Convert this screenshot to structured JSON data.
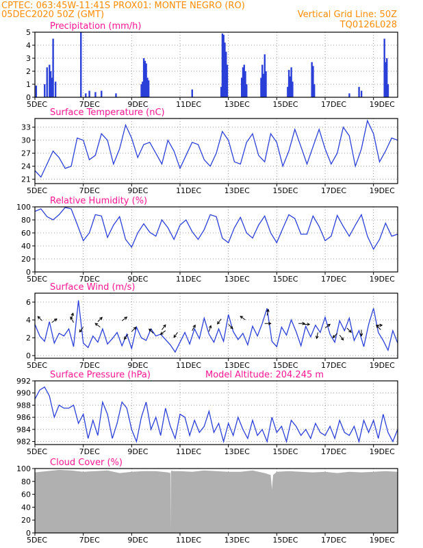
{
  "header": {
    "left_line1": "CPTEC:    063:45W-11:41S   PROX01: MONTE NEGRO (RO)",
    "left_line2": "05DEC2020 50Z (GMT)",
    "right_line1": "Vertical Grid Line: 50Z",
    "right_line2": "TQ0126L028"
  },
  "colors": {
    "header": "#ff8c00",
    "panel_title": "#ff1493",
    "line": "#2a3fd8",
    "cloud": "#b0b0b0",
    "grid": "#9a9a9a"
  },
  "model_altitude": "Model Altitude: 204.245 m",
  "x_tick_labels": [
    "5DEC",
    "7DEC",
    "9DEC",
    "11DEC",
    "13DEC",
    "15DEC",
    "17DEC",
    "19DEC"
  ],
  "x_tick_days": [
    5,
    7,
    9,
    11,
    13,
    15,
    17,
    19
  ],
  "x_range_days": [
    5,
    20
  ],
  "chart_data": [
    {
      "type": "bar",
      "title": "Precipitation (mm/h)",
      "ylim": [
        0,
        5
      ],
      "yticks": [
        0,
        1,
        2,
        3,
        4,
        5
      ],
      "xlim_days": [
        5,
        20
      ],
      "x_days": [
        5.05,
        5.4,
        5.5,
        5.6,
        5.65,
        5.7,
        5.75,
        5.85,
        6.9,
        7.1,
        7.25,
        7.5,
        7.75,
        8.35,
        9.4,
        9.45,
        9.5,
        9.55,
        9.6,
        9.65,
        9.7,
        11.5,
        12.7,
        12.75,
        12.8,
        12.85,
        12.9,
        12.95,
        13.55,
        13.6,
        13.65,
        13.7,
        13.75,
        14.35,
        14.4,
        14.45,
        14.5,
        14.55,
        15.45,
        15.5,
        15.55,
        15.6,
        15.65,
        16.45,
        16.5,
        16.55,
        18.0,
        18.4,
        18.5,
        19.45,
        19.5,
        19.55,
        19.6
      ],
      "values": [
        0.9,
        1.0,
        2.3,
        2.5,
        2.0,
        1.5,
        4.5,
        1.2,
        5.0,
        0.3,
        0.5,
        0.4,
        0.5,
        0.3,
        1.0,
        1.2,
        3.0,
        2.8,
        2.6,
        1.5,
        1.3,
        0.6,
        0.8,
        4.9,
        4.8,
        4.2,
        3.5,
        2.5,
        1.5,
        2.3,
        2.5,
        2.0,
        1.0,
        1.5,
        2.5,
        1.8,
        3.3,
        2.0,
        0.8,
        2.1,
        1.6,
        2.3,
        1.2,
        2.7,
        2.4,
        1.0,
        0.3,
        0.8,
        0.5,
        4.5,
        2.7,
        3.0,
        1.0
      ]
    },
    {
      "type": "line",
      "title": "Surface Temperature (nC)",
      "ylim": [
        20,
        35
      ],
      "yticks": [
        21,
        24,
        27,
        30,
        33
      ],
      "xlim_days": [
        5,
        20
      ],
      "x_days": [
        5.0,
        5.25,
        5.5,
        5.75,
        6.0,
        6.25,
        6.5,
        6.75,
        7.0,
        7.25,
        7.5,
        7.75,
        8.0,
        8.25,
        8.5,
        8.75,
        9.0,
        9.25,
        9.5,
        9.75,
        10.0,
        10.25,
        10.5,
        10.75,
        11.0,
        11.25,
        11.5,
        11.75,
        12.0,
        12.25,
        12.5,
        12.75,
        13.0,
        13.25,
        13.5,
        13.75,
        14.0,
        14.25,
        14.5,
        14.75,
        15.0,
        15.25,
        15.5,
        15.75,
        16.0,
        16.25,
        16.5,
        16.75,
        17.0,
        17.25,
        17.5,
        17.75,
        18.0,
        18.25,
        18.5,
        18.75,
        19.0,
        19.25,
        19.5,
        19.75,
        20.0
      ],
      "values": [
        23.0,
        21.5,
        24.5,
        27.5,
        26.0,
        23.5,
        24.0,
        30.5,
        30.0,
        25.5,
        26.5,
        31.5,
        30.0,
        24.5,
        28.0,
        33.5,
        30.5,
        26.0,
        29.0,
        29.5,
        27.0,
        24.5,
        30.0,
        27.5,
        23.5,
        26.5,
        29.5,
        29.0,
        25.5,
        24.0,
        27.0,
        32.0,
        30.0,
        25.0,
        24.5,
        29.5,
        31.5,
        26.5,
        25.0,
        31.5,
        29.5,
        24.0,
        27.5,
        32.5,
        28.5,
        24.5,
        28.5,
        32.5,
        28.0,
        24.5,
        27.0,
        33.0,
        31.0,
        24.0,
        28.0,
        34.5,
        31.5,
        25.0,
        27.5,
        30.5,
        30.0
      ]
    },
    {
      "type": "line",
      "title": "Relative Humidity (%)",
      "ylim": [
        0,
        100
      ],
      "yticks": [
        0,
        20,
        40,
        60,
        80,
        100
      ],
      "xlim_days": [
        5,
        20
      ],
      "x_days": [
        5.0,
        5.25,
        5.5,
        5.75,
        6.0,
        6.25,
        6.5,
        6.75,
        7.0,
        7.25,
        7.5,
        7.75,
        8.0,
        8.25,
        8.5,
        8.75,
        9.0,
        9.25,
        9.5,
        9.75,
        10.0,
        10.25,
        10.5,
        10.75,
        11.0,
        11.25,
        11.5,
        11.75,
        12.0,
        12.25,
        12.5,
        12.75,
        13.0,
        13.25,
        13.5,
        13.75,
        14.0,
        14.25,
        14.5,
        14.75,
        15.0,
        15.25,
        15.5,
        15.75,
        16.0,
        16.25,
        16.5,
        16.75,
        17.0,
        17.25,
        17.5,
        17.75,
        18.0,
        18.25,
        18.5,
        18.75,
        19.0,
        19.25,
        19.5,
        19.75,
        20.0
      ],
      "values": [
        93,
        97,
        85,
        80,
        88,
        99,
        97,
        73,
        48,
        60,
        88,
        86,
        53,
        72,
        85,
        50,
        38,
        60,
        74,
        61,
        55,
        80,
        68,
        50,
        72,
        80,
        62,
        50,
        65,
        88,
        85,
        52,
        45,
        68,
        84,
        60,
        52,
        72,
        86,
        60,
        45,
        67,
        88,
        82,
        58,
        58,
        86,
        70,
        48,
        55,
        87,
        70,
        55,
        72,
        88,
        55,
        35,
        50,
        75,
        55,
        58
      ]
    },
    {
      "type": "line",
      "title": "Surface Wind (m/s)",
      "ylim": [
        -0.3,
        7
      ],
      "yticks": [
        0,
        2,
        4,
        6
      ],
      "xlim_days": [
        5,
        20
      ],
      "x_days": [
        5.0,
        5.2,
        5.4,
        5.6,
        5.8,
        6.0,
        6.2,
        6.4,
        6.6,
        6.8,
        7.0,
        7.2,
        7.4,
        7.6,
        7.8,
        8.0,
        8.2,
        8.4,
        8.6,
        8.8,
        9.0,
        9.2,
        9.4,
        9.6,
        9.8,
        10.0,
        10.2,
        10.4,
        10.6,
        10.8,
        11.0,
        11.2,
        11.4,
        11.6,
        11.8,
        12.0,
        12.2,
        12.4,
        12.6,
        12.8,
        13.0,
        13.2,
        13.4,
        13.6,
        13.8,
        14.0,
        14.2,
        14.4,
        14.6,
        14.8,
        15.0,
        15.2,
        15.4,
        15.6,
        15.8,
        16.0,
        16.2,
        16.4,
        16.6,
        16.8,
        17.0,
        17.2,
        17.4,
        17.6,
        17.8,
        18.0,
        18.2,
        18.4,
        18.6,
        18.8,
        19.0,
        19.2,
        19.4,
        19.6,
        19.8,
        20.0
      ],
      "values": [
        3.5,
        2.2,
        1.6,
        3.8,
        1.4,
        2.5,
        2.2,
        3.0,
        1.0,
        6.2,
        1.4,
        0.9,
        2.2,
        1.5,
        3.0,
        1.3,
        1.9,
        2.6,
        1.1,
        2.4,
        0.8,
        3.2,
        2.0,
        1.7,
        3.0,
        2.2,
        2.4,
        1.8,
        1.2,
        0.4,
        1.5,
        2.6,
        1.3,
        3.0,
        1.9,
        4.2,
        2.4,
        1.5,
        3.0,
        1.6,
        4.6,
        2.7,
        1.8,
        2.5,
        1.2,
        3.3,
        2.2,
        3.6,
        5.3,
        1.6,
        1.0,
        3.2,
        2.3,
        4.0,
        2.7,
        1.1,
        3.3,
        2.1,
        3.4,
        2.6,
        4.3,
        2.4,
        1.5,
        3.9,
        2.8,
        4.2,
        1.7,
        2.8,
        1.0,
        3.5,
        5.3,
        2.6,
        1.7,
        0.6,
        2.8,
        1.4
      ],
      "wind_arrows": [
        {
          "day": 5.3,
          "speed": 3.9,
          "u": -0.7,
          "v": 0.7
        },
        {
          "day": 5.7,
          "speed": 3.7,
          "u": 0.8,
          "v": 0.6
        },
        {
          "day": 6.5,
          "speed": 4.1,
          "u": 0.3,
          "v": 0.95
        },
        {
          "day": 6.6,
          "speed": 3.7,
          "u": -0.5,
          "v": 0.9
        },
        {
          "day": 7.0,
          "speed": 3.2,
          "u": -0.6,
          "v": -0.8
        },
        {
          "day": 7.6,
          "speed": 3.8,
          "u": 0.7,
          "v": 0.7
        },
        {
          "day": 7.7,
          "speed": 3.2,
          "u": -0.8,
          "v": 0.6
        },
        {
          "day": 8.6,
          "speed": 3.9,
          "u": 0.8,
          "v": 0.6
        },
        {
          "day": 8.85,
          "speed": 2.4,
          "u": -0.6,
          "v": -0.8
        },
        {
          "day": 9.0,
          "speed": 2.7,
          "u": 0.7,
          "v": 0.7
        },
        {
          "day": 9.9,
          "speed": 2.5,
          "u": -0.7,
          "v": 0.7
        },
        {
          "day": 10.25,
          "speed": 2.9,
          "u": 0.6,
          "v": 0.8
        },
        {
          "day": 10.4,
          "speed": 2.8,
          "u": -0.8,
          "v": -0.6
        },
        {
          "day": 10.9,
          "speed": 2.6,
          "u": -0.6,
          "v": -0.8
        },
        {
          "day": 11.5,
          "speed": 2.8,
          "u": 0.5,
          "v": 0.9
        },
        {
          "day": 12.2,
          "speed": 2.7,
          "u": 0.3,
          "v": 0.95
        },
        {
          "day": 12.7,
          "speed": 4.1,
          "u": -0.6,
          "v": -0.8
        },
        {
          "day": 13.0,
          "speed": 3.5,
          "u": 0.7,
          "v": -0.7
        },
        {
          "day": 13.7,
          "speed": 4.0,
          "u": -0.8,
          "v": 0.6
        },
        {
          "day": 14.5,
          "speed": 3.6,
          "u": 1.0,
          "v": 0.0
        },
        {
          "day": 14.6,
          "speed": 4.5,
          "u": 0.2,
          "v": 0.98
        },
        {
          "day": 15.9,
          "speed": 3.6,
          "u": 1.0,
          "v": 0.0
        },
        {
          "day": 16.1,
          "speed": 3.5,
          "u": 1.0,
          "v": 0.0
        },
        {
          "day": 16.7,
          "speed": 2.6,
          "u": -0.2,
          "v": -0.98
        },
        {
          "day": 17.0,
          "speed": 3.1,
          "u": 0.8,
          "v": 0.6
        },
        {
          "day": 17.5,
          "speed": 2.5,
          "u": -0.7,
          "v": -0.7
        },
        {
          "day": 17.6,
          "speed": 2.3,
          "u": 0.6,
          "v": -0.8
        },
        {
          "day": 17.9,
          "speed": 3.1,
          "u": 0.7,
          "v": -0.7
        },
        {
          "day": 18.5,
          "speed": 2.9,
          "u": 0.0,
          "v": -1.0
        },
        {
          "day": 19.1,
          "speed": 3.4,
          "u": 1.0,
          "v": 0.0
        },
        {
          "day": 19.3,
          "speed": 2.9,
          "u": -0.7,
          "v": 0.7
        }
      ]
    },
    {
      "type": "line",
      "title": "Surface Pressure (hPa)",
      "ylim": [
        981.5,
        992
      ],
      "yticks": [
        982,
        984,
        986,
        988,
        990,
        992
      ],
      "xlim_days": [
        5,
        20
      ],
      "x_days": [
        5.0,
        5.2,
        5.4,
        5.6,
        5.8,
        6.0,
        6.2,
        6.4,
        6.6,
        6.8,
        7.0,
        7.2,
        7.4,
        7.6,
        7.8,
        8.0,
        8.2,
        8.4,
        8.6,
        8.8,
        9.0,
        9.2,
        9.4,
        9.6,
        9.8,
        10.0,
        10.2,
        10.4,
        10.6,
        10.8,
        11.0,
        11.2,
        11.4,
        11.6,
        11.8,
        12.0,
        12.2,
        12.4,
        12.6,
        12.8,
        13.0,
        13.2,
        13.4,
        13.6,
        13.8,
        14.0,
        14.2,
        14.4,
        14.6,
        14.8,
        15.0,
        15.2,
        15.4,
        15.6,
        15.8,
        16.0,
        16.2,
        16.4,
        16.6,
        16.8,
        17.0,
        17.2,
        17.4,
        17.6,
        17.8,
        18.0,
        18.2,
        18.4,
        18.6,
        18.8,
        19.0,
        19.2,
        19.4,
        19.6,
        19.8,
        20.0
      ],
      "values": [
        989.0,
        990.5,
        991.0,
        989.5,
        986.0,
        988.0,
        987.5,
        987.5,
        988.0,
        985.0,
        986.5,
        982.5,
        985.5,
        983.0,
        988.5,
        986.5,
        982.5,
        985.0,
        988.5,
        987.5,
        984.0,
        982.0,
        986.0,
        988.5,
        984.0,
        986.0,
        983.0,
        987.5,
        984.5,
        982.5,
        986.5,
        986.0,
        983.0,
        985.5,
        983.5,
        984.5,
        987.0,
        983.5,
        985.0,
        982.0,
        985.0,
        983.0,
        986.0,
        984.0,
        982.5,
        985.5,
        983.0,
        984.0,
        982.0,
        986.0,
        983.5,
        984.5,
        982.0,
        985.5,
        984.5,
        983.0,
        984.0,
        982.5,
        985.0,
        983.5,
        983.0,
        984.5,
        982.5,
        985.5,
        983.5,
        983.0,
        984.5,
        982.0,
        985.5,
        983.5,
        985.5,
        982.5,
        986.5,
        983.5,
        982.0,
        984.0
      ]
    },
    {
      "type": "area",
      "title": "Cloud Cover (%)",
      "ylim": [
        0,
        100
      ],
      "yticks": [
        0,
        20,
        40,
        60,
        80,
        100
      ],
      "xlim_days": [
        5,
        20
      ],
      "x_days": [
        5.0,
        5.5,
        6.0,
        6.5,
        7.0,
        7.5,
        8.0,
        8.5,
        9.0,
        9.5,
        10.0,
        10.5,
        10.6,
        10.61,
        10.62,
        10.65,
        10.7,
        11.0,
        11.5,
        12.0,
        12.5,
        13.0,
        13.5,
        14.0,
        14.5,
        14.75,
        14.8,
        14.85,
        15.0,
        15.5,
        16.0,
        16.5,
        17.0,
        17.5,
        18.0,
        18.5,
        19.0,
        19.5,
        20.0
      ],
      "values": [
        94,
        96,
        98,
        97,
        95,
        96,
        97,
        93,
        95,
        96,
        96,
        94,
        93,
        5,
        94,
        97,
        96,
        96,
        95,
        97,
        96,
        95,
        95,
        97,
        93,
        90,
        68,
        90,
        95,
        96,
        95,
        94,
        95,
        93,
        95,
        94,
        95,
        96,
        95
      ]
    }
  ]
}
